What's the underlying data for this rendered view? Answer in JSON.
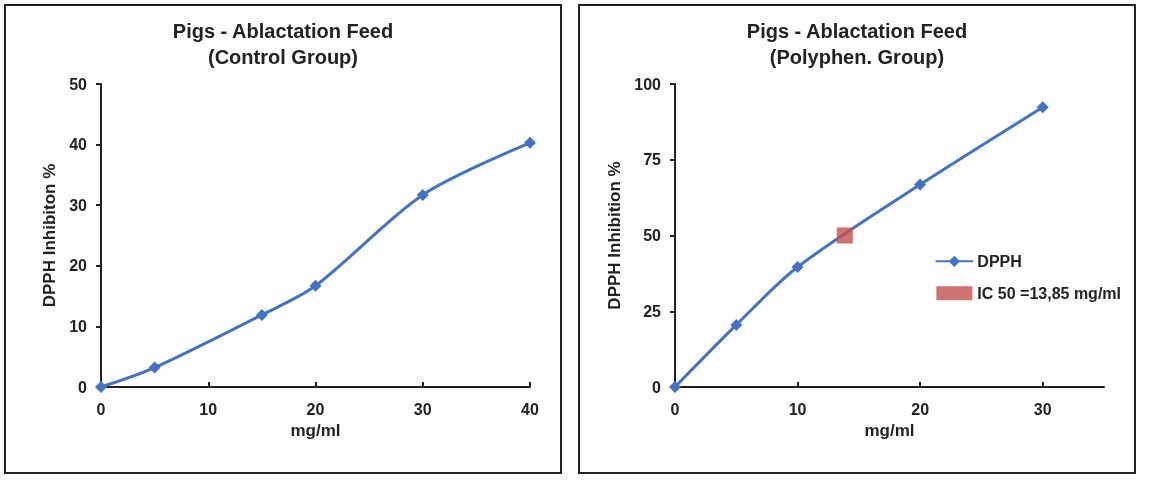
{
  "chart_data": [
    {
      "type": "line",
      "title": "Pigs - Ablactation Feed",
      "subtitle": "(Control Group)",
      "xlabel": "mg/ml",
      "ylabel": "DPPH Inhibiton %",
      "xlim": [
        0,
        40
      ],
      "xticks": [
        0,
        10,
        20,
        30,
        40
      ],
      "ylim": [
        0,
        50
      ],
      "yticks": [
        0,
        10,
        20,
        30,
        40,
        50
      ],
      "grid": false,
      "legend": false,
      "marker": "diamond",
      "series": [
        {
          "color": "#4472c4",
          "x": [
            0,
            5,
            15,
            20,
            30,
            40
          ],
          "values": [
            0,
            3.2,
            11.9,
            16.7,
            31.7,
            40.3
          ]
        }
      ]
    },
    {
      "type": "line",
      "title": "Pigs - Ablactation Feed",
      "subtitle": "(Polyphen. Group)",
      "xlabel": "mg/ml",
      "ylabel": "DPPH Inhibition %",
      "xlim": [
        0,
        35
      ],
      "xticks": [
        0,
        10,
        20,
        30
      ],
      "ylim": [
        0,
        100
      ],
      "yticks": [
        0,
        25,
        50,
        75,
        100
      ],
      "grid": false,
      "legend": "right",
      "marker": "diamond",
      "series": [
        {
          "name": "DPPH",
          "color": "#4472c4",
          "x": [
            0,
            5,
            10,
            20,
            30
          ],
          "values": [
            0,
            20.5,
            39.6,
            66.8,
            92.3
          ]
        },
        {
          "name": "IC 50 =13,85 mg/ml",
          "type": "scatter",
          "marker": "square",
          "color": "#c0504d",
          "x": [
            13.85
          ],
          "values": [
            50
          ]
        }
      ]
    }
  ]
}
